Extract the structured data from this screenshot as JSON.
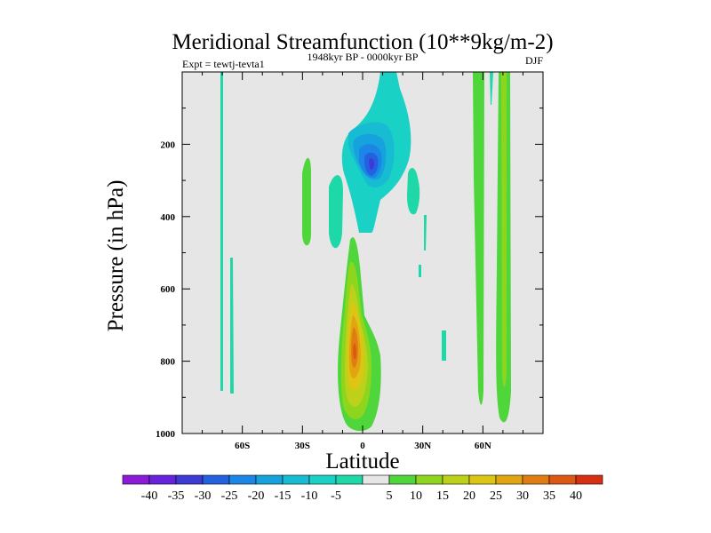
{
  "chart_data": {
    "type": "contour",
    "title": "Meridional Streamfunction (10**9kg/m-2)",
    "left_string": "Expt = tewtj-tevta1",
    "center_string": "1948kyr BP - 0000kyr BP",
    "right_string": "DJF",
    "xlabel": "Latitude",
    "ylabel": "Pressure (in hPa)",
    "xlim": [
      -90,
      90
    ],
    "ylim": [
      1000,
      0
    ],
    "xticks": [
      {
        "value": -60,
        "label": "60S"
      },
      {
        "value": -30,
        "label": "30S"
      },
      {
        "value": 0,
        "label": "0"
      },
      {
        "value": 30,
        "label": "30N"
      },
      {
        "value": 60,
        "label": "60N"
      }
    ],
    "yticks": [
      {
        "value": 200,
        "label": "200"
      },
      {
        "value": 400,
        "label": "400"
      },
      {
        "value": 600,
        "label": "600"
      },
      {
        "value": 800,
        "label": "800"
      },
      {
        "value": 1000,
        "label": "1000"
      }
    ],
    "background_color": "#e6e6e6",
    "colorbar": {
      "labels": [
        "-40",
        "-35",
        "-30",
        "-25",
        "-20",
        "-15",
        "-10",
        "-5",
        "5",
        "10",
        "15",
        "20",
        "25",
        "30",
        "35",
        "40"
      ],
      "colors": [
        "#8c1ad9",
        "#6622dd",
        "#3e3ad5",
        "#2461e0",
        "#1b86e6",
        "#15a2dd",
        "#17bcd3",
        "#19d1c4",
        "#1fd8a7",
        "#e6e6e6",
        "#4fd63b",
        "#8ed61e",
        "#bdd11b",
        "#dcc613",
        "#e2a512",
        "#e07d12",
        "#dd5813",
        "#d82e12"
      ]
    },
    "features": [
      {
        "name": "upper-negative-cell",
        "sign": "negative",
        "center_lat": 3,
        "center_p": 235,
        "min_value": -30
      },
      {
        "name": "lower-positive-cell",
        "sign": "positive",
        "center_lat": -4,
        "center_p": 780,
        "max_value": 35
      },
      {
        "name": "north-positive-band-1",
        "sign": "positive",
        "lat": 58,
        "max_value": 10
      },
      {
        "name": "north-positive-band-2",
        "sign": "positive",
        "lat": 70,
        "max_value": 10
      }
    ]
  }
}
